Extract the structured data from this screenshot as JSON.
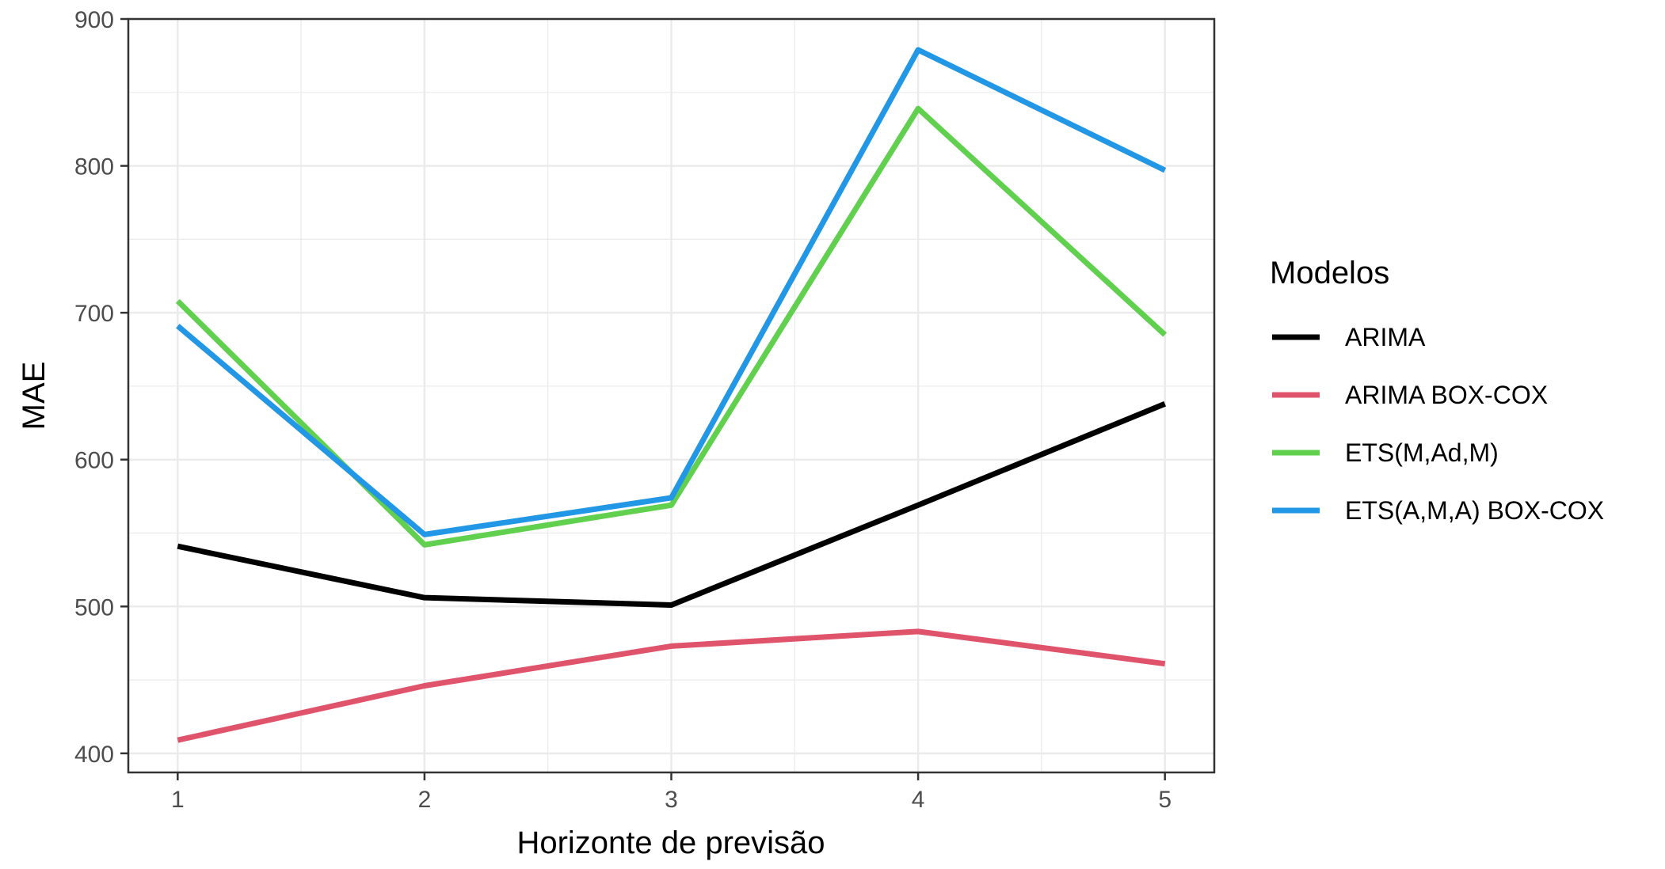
{
  "chart_data": {
    "type": "line",
    "x": [
      1,
      2,
      3,
      4,
      5
    ],
    "xlabel": "Horizonte de previsão",
    "ylabel": "MAE",
    "xlim": [
      0.8,
      5.2
    ],
    "ylim": [
      387,
      900
    ],
    "x_ticks": [
      "1",
      "2",
      "3",
      "4",
      "5"
    ],
    "y_ticks": [
      "400",
      "500",
      "600",
      "700",
      "800",
      "900"
    ],
    "grid": true,
    "legend": {
      "title": "Modelos",
      "position": "right"
    },
    "series": [
      {
        "name": "ARIMA",
        "color": "#000000",
        "values": [
          541,
          506,
          501,
          569,
          638
        ]
      },
      {
        "name": "ARIMA BOX-COX",
        "color": "#DF536B",
        "values": [
          409,
          446,
          473,
          483,
          461
        ]
      },
      {
        "name": "ETS(M,Ad,M)",
        "color": "#61D04F",
        "values": [
          708,
          542,
          569,
          839,
          685
        ]
      },
      {
        "name": "ETS(A,M,A) BOX-COX",
        "color": "#2297E6",
        "values": [
          691,
          549,
          574,
          879,
          797
        ]
      }
    ]
  }
}
